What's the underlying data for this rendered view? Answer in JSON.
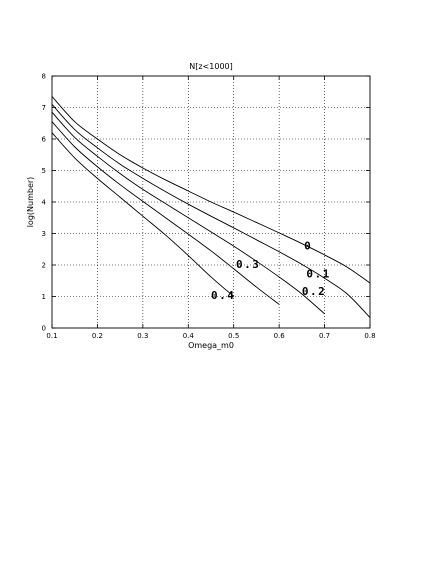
{
  "chart_data": {
    "type": "line",
    "title": "N[z<1000]",
    "xlabel": "Omega_m0",
    "ylabel": "log(Number)",
    "xlim": [
      0.1,
      0.8
    ],
    "ylim": [
      0,
      8
    ],
    "xticks": [
      "0.1",
      "0.2",
      "0.3",
      "0.4",
      "0.5",
      "0.6",
      "0.7",
      "0.8"
    ],
    "yticks": [
      "0",
      "1",
      "2",
      "3",
      "4",
      "5",
      "6",
      "7",
      "8"
    ],
    "grid": true,
    "series": [
      {
        "name": "0",
        "label_text": "0",
        "x": [
          0.1,
          0.15,
          0.2,
          0.25,
          0.3,
          0.35,
          0.4,
          0.45,
          0.5,
          0.55,
          0.6,
          0.65,
          0.7,
          0.75,
          0.8
        ],
        "y": [
          7.35,
          6.55,
          6.0,
          5.5,
          5.08,
          4.7,
          4.35,
          4.0,
          3.68,
          3.35,
          3.02,
          2.68,
          2.32,
          1.93,
          1.43
        ]
      },
      {
        "name": "0.1",
        "label_text": "0.1",
        "x": [
          0.1,
          0.15,
          0.2,
          0.25,
          0.3,
          0.35,
          0.4,
          0.45,
          0.5,
          0.55,
          0.6,
          0.65,
          0.7,
          0.75,
          0.8
        ],
        "y": [
          7.1,
          6.3,
          5.72,
          5.2,
          4.75,
          4.33,
          3.93,
          3.55,
          3.18,
          2.8,
          2.42,
          2.02,
          1.58,
          1.08,
          0.33
        ]
      },
      {
        "name": "0.2",
        "label_text": "0.2",
        "x": [
          0.1,
          0.15,
          0.2,
          0.25,
          0.3,
          0.35,
          0.4,
          0.45,
          0.5,
          0.55,
          0.6,
          0.65,
          0.7
        ],
        "y": [
          6.85,
          6.05,
          5.45,
          4.9,
          4.4,
          3.95,
          3.5,
          3.05,
          2.6,
          2.12,
          1.62,
          1.08,
          0.45
        ]
      },
      {
        "name": "0.3",
        "label_text": "0.3",
        "x": [
          0.1,
          0.15,
          0.2,
          0.25,
          0.3,
          0.35,
          0.4,
          0.45,
          0.5,
          0.55,
          0.6
        ],
        "y": [
          6.55,
          5.75,
          5.12,
          4.55,
          4.02,
          3.5,
          2.98,
          2.45,
          1.88,
          1.3,
          0.75
        ]
      },
      {
        "name": "0.4",
        "label_text": "0.4",
        "x": [
          0.1,
          0.15,
          0.2,
          0.25,
          0.3,
          0.35,
          0.4,
          0.45,
          0.5
        ],
        "y": [
          6.2,
          5.4,
          4.75,
          4.15,
          3.55,
          2.95,
          2.3,
          1.62,
          1.0
        ]
      }
    ],
    "curve_labels": [
      {
        "text": "0",
        "x": 0.655,
        "y": 2.5
      },
      {
        "text": "0.1",
        "x": 0.66,
        "y": 1.6
      },
      {
        "text": "0.2",
        "x": 0.65,
        "y": 1.05
      },
      {
        "text": "0.3",
        "x": 0.505,
        "y": 1.9
      },
      {
        "text": "0.4",
        "x": 0.45,
        "y": 0.92
      }
    ]
  }
}
